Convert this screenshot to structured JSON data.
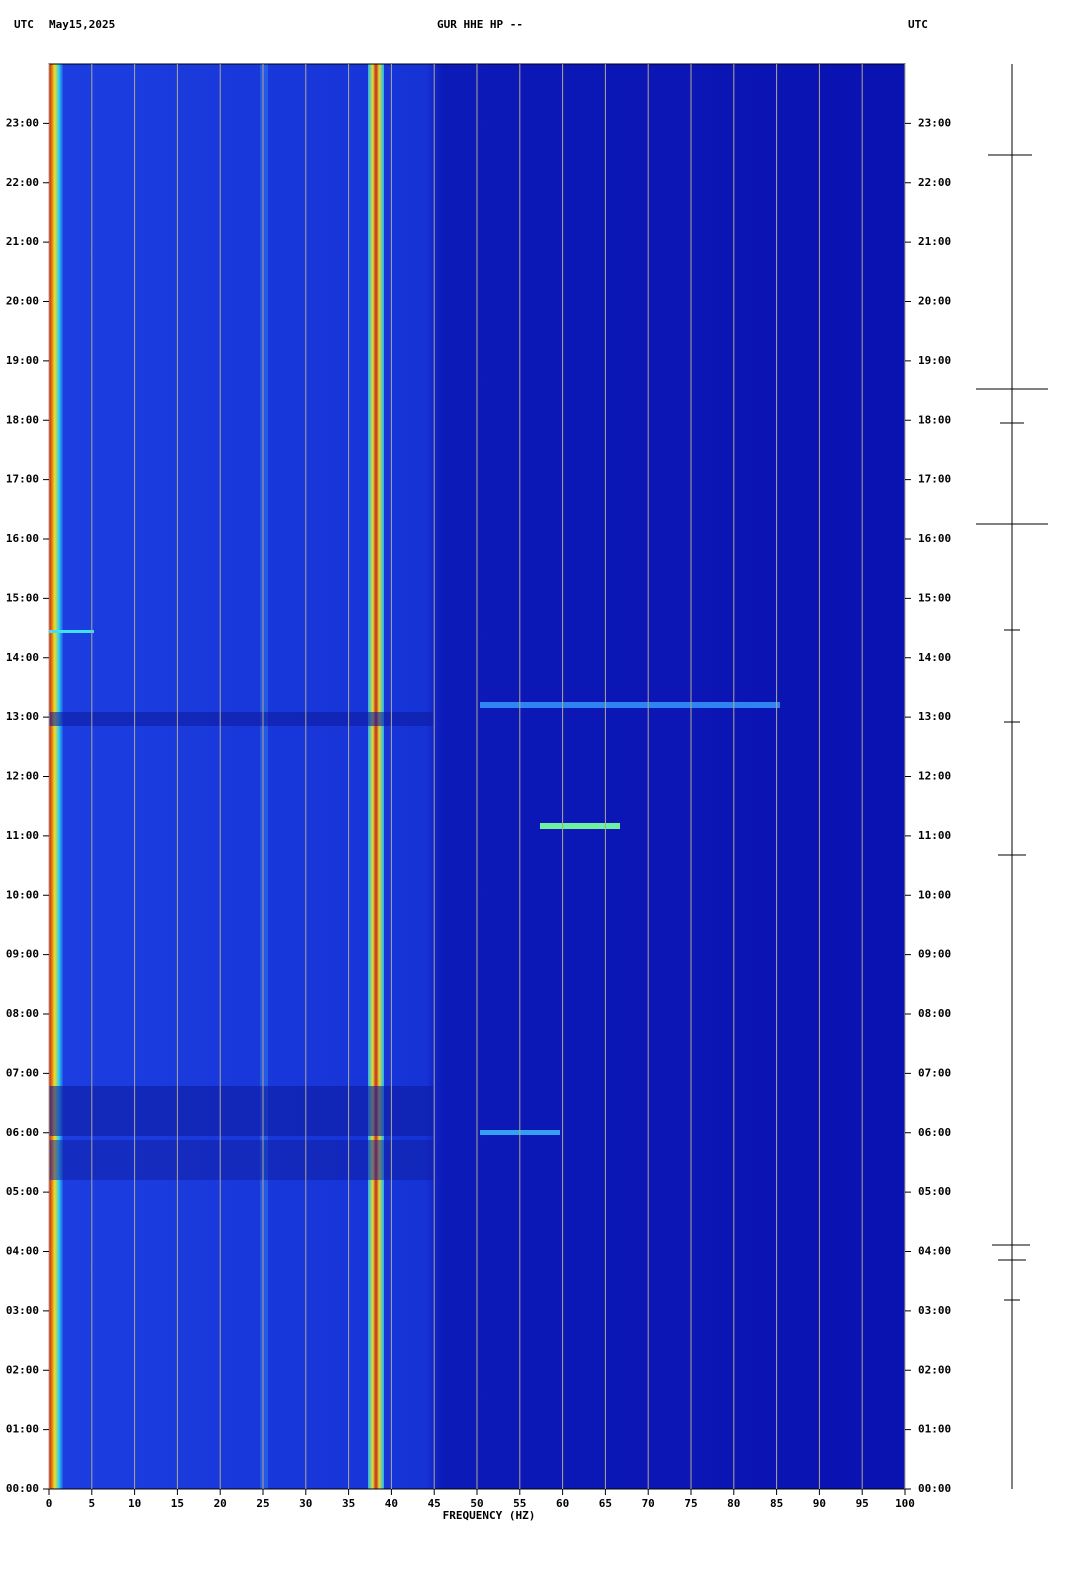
{
  "chart_data": {
    "type": "spectrogram",
    "title": "GUR HHE HP --",
    "date": "May15,2025",
    "left_label": "UTC",
    "right_label": "UTC",
    "xlabel": "FREQUENCY (HZ)",
    "xlim": [
      0,
      100
    ],
    "xticks": [
      0,
      5,
      10,
      15,
      20,
      25,
      30,
      35,
      40,
      45,
      50,
      55,
      60,
      65,
      70,
      75,
      80,
      85,
      90,
      95,
      100
    ],
    "ylim": [
      0,
      24
    ],
    "yticks": [
      {
        "value": 0,
        "label": "00:00"
      },
      {
        "value": 1,
        "label": "01:00"
      },
      {
        "value": 2,
        "label": "02:00"
      },
      {
        "value": 3,
        "label": "03:00"
      },
      {
        "value": 4,
        "label": "04:00"
      },
      {
        "value": 5,
        "label": "05:00"
      },
      {
        "value": 6,
        "label": "06:00"
      },
      {
        "value": 7,
        "label": "07:00"
      },
      {
        "value": 8,
        "label": "08:00"
      },
      {
        "value": 9,
        "label": "09:00"
      },
      {
        "value": 10,
        "label": "10:00"
      },
      {
        "value": 11,
        "label": "11:00"
      },
      {
        "value": 12,
        "label": "12:00"
      },
      {
        "value": 13,
        "label": "13:00"
      },
      {
        "value": 14,
        "label": "14:00"
      },
      {
        "value": 15,
        "label": "15:00"
      },
      {
        "value": 16,
        "label": "16:00"
      },
      {
        "value": 17,
        "label": "17:00"
      },
      {
        "value": 18,
        "label": "18:00"
      },
      {
        "value": 19,
        "label": "19:00"
      },
      {
        "value": 20,
        "label": "20:00"
      },
      {
        "value": 21,
        "label": "21:00"
      },
      {
        "value": 22,
        "label": "22:00"
      },
      {
        "value": 23,
        "label": "23:00"
      }
    ],
    "grid": true
  }
}
